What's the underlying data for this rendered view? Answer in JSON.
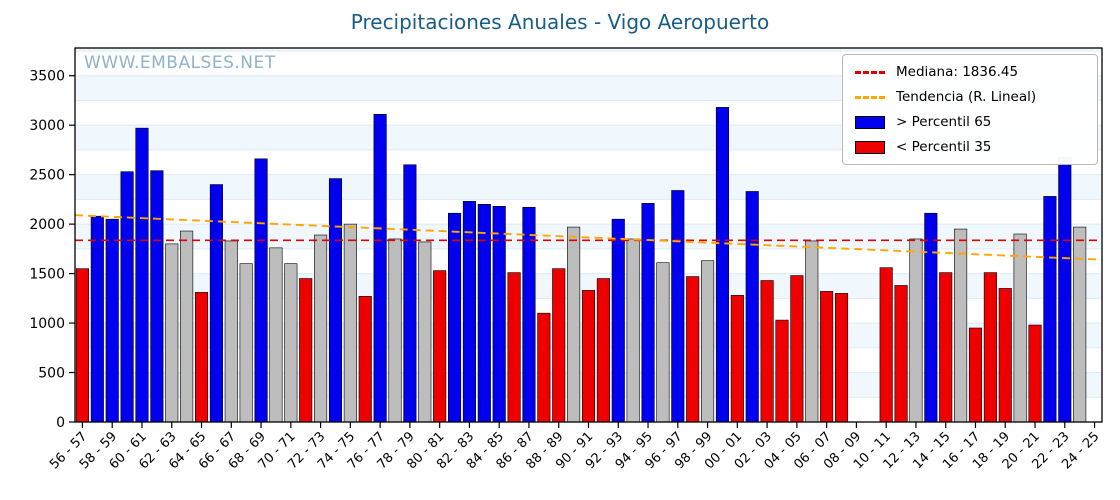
{
  "page": {
    "title": "Precipitaciones Anuales - Vigo Aeropuerto",
    "watermark": "WWW.EMBALSES.NET"
  },
  "legend": {
    "items": [
      {
        "id": "median",
        "type": "dashed-line",
        "color": "#e00000",
        "label": "Mediana: 1836.45"
      },
      {
        "id": "trend",
        "type": "dashed-line",
        "color": "#ffa500",
        "label": "Tendencia (R. Lineal)"
      },
      {
        "id": "p65",
        "type": "rect",
        "color": "#0000ee",
        "label": "> Percentil 65"
      },
      {
        "id": "p35",
        "type": "rect",
        "color": "#ee0000",
        "label": "< Percentil 35"
      }
    ]
  },
  "chart_data": {
    "type": "bar",
    "title": "Precipitaciones Anuales - Vigo Aeropuerto",
    "xlabel": "",
    "ylabel": "",
    "ylim": [
      0,
      3780
    ],
    "yticks": [
      0,
      500,
      1000,
      1500,
      2000,
      2500,
      3000,
      3500
    ],
    "grid_step": 250,
    "xtick_step": 2,
    "median": 1836.45,
    "trend": {
      "start": 2090,
      "end": 1640
    },
    "categories": [
      "56 - 57",
      "57 - 58",
      "58 - 59",
      "59 - 60",
      "60 - 61",
      "61 - 62",
      "62 - 63",
      "63 - 64",
      "64 - 65",
      "65 - 66",
      "66 - 67",
      "67 - 68",
      "68 - 69",
      "69 - 70",
      "70 - 71",
      "71 - 72",
      "72 - 73",
      "73 - 74",
      "74 - 75",
      "75 - 76",
      "76 - 77",
      "77 - 78",
      "78 - 79",
      "79 - 80",
      "80 - 81",
      "81 - 82",
      "82 - 83",
      "83 - 84",
      "84 - 85",
      "85 - 86",
      "86 - 87",
      "87 - 88",
      "88 - 89",
      "89 - 90",
      "90 - 91",
      "91 - 92",
      "92 - 93",
      "93 - 94",
      "94 - 95",
      "95 - 96",
      "96 - 97",
      "97 - 98",
      "98 - 99",
      "99 - 00",
      "00 - 01",
      "01 - 02",
      "02 - 03",
      "03 - 04",
      "04 - 05",
      "05 - 06",
      "06 - 07",
      "07 - 08",
      "08 - 09",
      "09 - 10",
      "10 - 11",
      "11 - 12",
      "12 - 13",
      "13 - 14",
      "14 - 15",
      "15 - 16",
      "16 - 17",
      "17 - 18",
      "18 - 19",
      "19 - 20",
      "20 - 21",
      "21 - 22",
      "22 - 23",
      "23 - 24",
      "24 - 25"
    ],
    "values": [
      1550,
      2080,
      2050,
      2530,
      2970,
      2540,
      1800,
      1930,
      1310,
      2400,
      1830,
      1600,
      2660,
      1760,
      1600,
      1450,
      1890,
      2460,
      2000,
      1270,
      3110,
      1850,
      2600,
      1820,
      1530,
      2110,
      2230,
      2200,
      2180,
      1510,
      2170,
      1100,
      1550,
      1970,
      1330,
      1450,
      2050,
      1850,
      2210,
      1610,
      2340,
      1470,
      1630,
      3180,
      1280,
      2330,
      1430,
      1030,
      1480,
      1830,
      1320,
      1300,
      null,
      null,
      1560,
      1380,
      1850,
      2110,
      1510,
      1950,
      950,
      1510,
      1350,
      1900,
      980,
      2280,
      2600,
      1970,
      null
    ],
    "classes": [
      "p35",
      "p65",
      "p65",
      "p65",
      "p65",
      "p65",
      "mid",
      "mid",
      "p35",
      "p65",
      "mid",
      "mid",
      "p65",
      "mid",
      "mid",
      "p35",
      "mid",
      "p65",
      "mid",
      "p35",
      "p65",
      "mid",
      "p65",
      "mid",
      "p35",
      "p65",
      "p65",
      "p65",
      "p65",
      "p35",
      "p65",
      "p35",
      "p35",
      "mid",
      "p35",
      "p35",
      "p65",
      "mid",
      "p65",
      "mid",
      "p65",
      "p35",
      "mid",
      "p65",
      "p35",
      "p65",
      "p35",
      "p35",
      "p35",
      "mid",
      "p35",
      "p35",
      null,
      null,
      "p35",
      "p35",
      "mid",
      "p65",
      "p35",
      "mid",
      "p35",
      "p35",
      "p35",
      "mid",
      "p35",
      "p65",
      "p65",
      "mid",
      null
    ],
    "cap": {
      "index": 66,
      "to_value": 2670
    },
    "legend_position": "upper right",
    "grid": true,
    "colors": {
      "p65": "#0000ee",
      "p35": "#ee0000",
      "mid": "#bdbdbd",
      "median": "#e00000",
      "trend": "#ffa500",
      "grid": "#dcecf7",
      "band": "#f1f8fd",
      "title": "#185d86",
      "watermark": "#8fb3c9"
    }
  }
}
